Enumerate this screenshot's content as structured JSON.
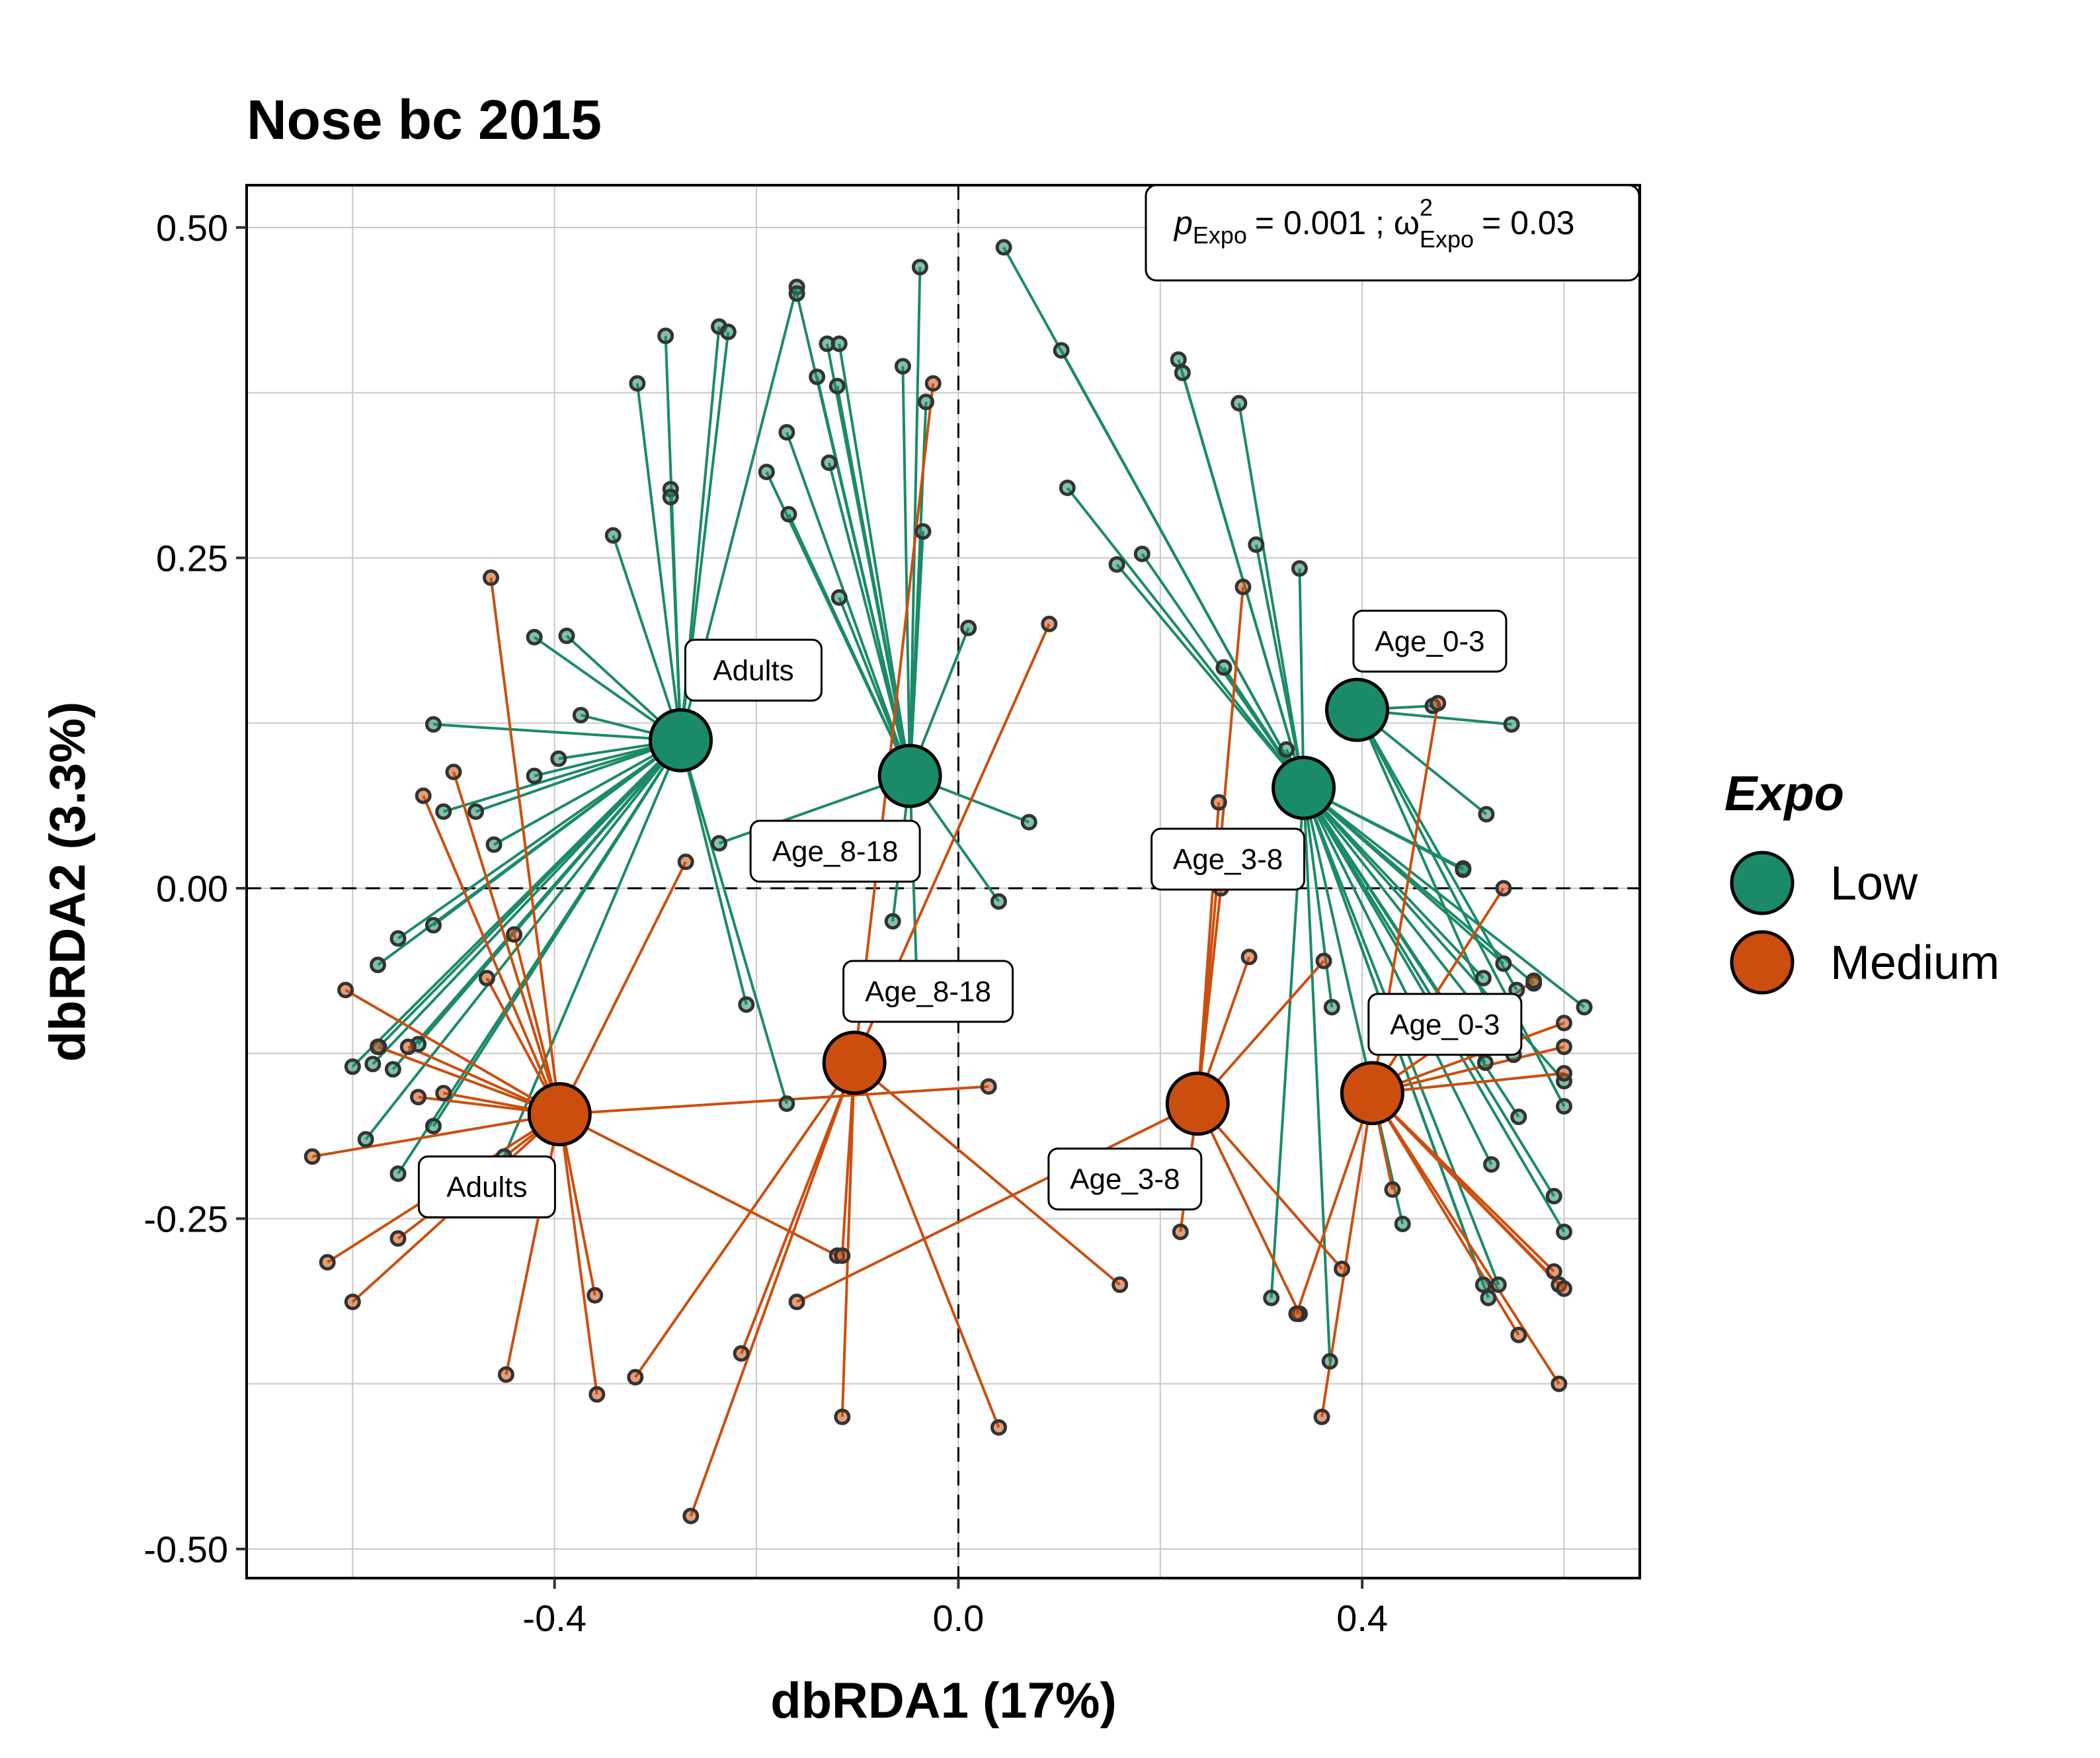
{
  "chart_data": {
    "type": "scatter",
    "title": "Nose bc 2015",
    "xlabel": "dbRDA1 (17%)",
    "ylabel": "dbRDA2 (3.3%)",
    "xlim": [
      -0.705,
      0.675
    ],
    "ylim": [
      -0.522,
      0.532
    ],
    "x_ticks": [
      -0.4,
      0.0,
      0.4
    ],
    "x_tick_labels": [
      "-0.4",
      "0.0",
      "0.4"
    ],
    "y_ticks": [
      0.5,
      0.25,
      0.0,
      -0.25,
      -0.5
    ],
    "y_tick_labels": [
      "0.50",
      "0.25",
      "0.00",
      "-0.25",
      "-0.50"
    ],
    "grid": true,
    "reference_lines": {
      "x": 0,
      "y": 0,
      "style": "dashed"
    },
    "annotation": {
      "p_symbol": "p",
      "subscript": "Expo",
      "p_value": "= 0.001 ;",
      "omega_symbol": "ω",
      "superscript": "2",
      "omega_value": "= 0.03"
    },
    "legend": {
      "title": "Expo",
      "position": "right",
      "entries": [
        {
          "label": "Low",
          "color": "#1b8a68"
        },
        {
          "label": "Medium",
          "color": "#cc4e0e"
        }
      ]
    },
    "colors": {
      "Low": "#1b8a68",
      "Medium": "#cc4e0e"
    },
    "groups": [
      {
        "expo": "Low",
        "label": "Adults",
        "centroid": [
          -0.275,
          0.112
        ],
        "label_pos": [
          -0.203,
          0.165
        ],
        "points": [
          [
            -0.29,
            0.418
          ],
          [
            -0.237,
            0.425
          ],
          [
            -0.228,
            0.421
          ],
          [
            -0.318,
            0.382
          ],
          [
            -0.285,
            0.302
          ],
          [
            -0.285,
            0.296
          ],
          [
            -0.342,
            0.267
          ],
          [
            -0.42,
            0.19
          ],
          [
            -0.388,
            0.191
          ],
          [
            -0.374,
            0.131
          ],
          [
            -0.52,
            0.124
          ],
          [
            -0.396,
            0.098
          ],
          [
            -0.42,
            0.085
          ],
          [
            -0.51,
            0.058
          ],
          [
            -0.478,
            0.058
          ],
          [
            -0.46,
            0.033
          ],
          [
            -0.555,
            -0.038
          ],
          [
            -0.52,
            -0.028
          ],
          [
            -0.575,
            -0.058
          ],
          [
            -0.574,
            -0.12
          ],
          [
            -0.6,
            -0.135
          ],
          [
            -0.58,
            -0.133
          ],
          [
            -0.56,
            -0.137
          ],
          [
            -0.535,
            -0.118
          ],
          [
            -0.587,
            -0.19
          ],
          [
            -0.555,
            -0.216
          ],
          [
            -0.52,
            -0.18
          ],
          [
            -0.45,
            -0.203
          ],
          [
            -0.17,
            -0.163
          ],
          [
            -0.21,
            -0.088
          ],
          [
            -0.16,
            0.455
          ]
        ]
      },
      {
        "expo": "Low",
        "label": "Age_8-18",
        "centroid": [
          -0.048,
          0.085
        ],
        "label_pos": [
          -0.122,
          0.028
        ],
        "points": [
          [
            -0.16,
            0.45
          ],
          [
            -0.13,
            0.412
          ],
          [
            -0.118,
            0.412
          ],
          [
            -0.14,
            0.387
          ],
          [
            -0.12,
            0.38
          ],
          [
            -0.055,
            0.395
          ],
          [
            -0.17,
            0.345
          ],
          [
            -0.128,
            0.322
          ],
          [
            -0.19,
            0.315
          ],
          [
            -0.168,
            0.283
          ],
          [
            -0.038,
            0.47
          ],
          [
            -0.035,
            0.27
          ],
          [
            -0.032,
            0.368
          ],
          [
            -0.118,
            0.22
          ],
          [
            0.01,
            0.197
          ],
          [
            -0.237,
            0.034
          ],
          [
            -0.065,
            -0.025
          ],
          [
            0.04,
            -0.01
          ],
          [
            0.07,
            0.05
          ],
          [
            -0.04,
            -0.095
          ]
        ]
      },
      {
        "expo": "Low",
        "label": "Age_3-8",
        "centroid": [
          0.342,
          0.076
        ],
        "label_pos": [
          0.267,
          0.022
        ],
        "points": [
          [
            0.045,
            0.485
          ],
          [
            0.102,
            0.407
          ],
          [
            0.108,
            0.303
          ],
          [
            0.157,
            0.245
          ],
          [
            0.182,
            0.253
          ],
          [
            0.218,
            0.4
          ],
          [
            0.222,
            0.39
          ],
          [
            0.278,
            0.367
          ],
          [
            0.295,
            0.26
          ],
          [
            0.338,
            0.242
          ],
          [
            0.263,
            0.167
          ],
          [
            0.325,
            0.105
          ],
          [
            0.5,
            0.015
          ],
          [
            0.5,
            0.014
          ],
          [
            0.52,
            -0.068
          ],
          [
            0.55,
            -0.126
          ],
          [
            0.555,
            -0.173
          ],
          [
            0.57,
            -0.072
          ],
          [
            0.6,
            -0.146
          ],
          [
            0.59,
            -0.233
          ],
          [
            0.6,
            -0.26
          ],
          [
            0.52,
            -0.3
          ],
          [
            0.525,
            -0.31
          ],
          [
            0.535,
            -0.3
          ],
          [
            0.44,
            -0.254
          ],
          [
            0.31,
            -0.31
          ],
          [
            0.368,
            -0.358
          ],
          [
            0.37,
            -0.09
          ],
          [
            0.522,
            -0.132
          ],
          [
            0.528,
            -0.209
          ],
          [
            0.62,
            -0.09
          ],
          [
            0.54,
            -0.057
          ]
        ]
      },
      {
        "expo": "Low",
        "label": "Age_0-3",
        "centroid": [
          0.395,
          0.135
        ],
        "label_pos": [
          0.467,
          0.187
        ],
        "points": [
          [
            0.47,
            0.138
          ],
          [
            0.548,
            0.124
          ],
          [
            0.523,
            0.056
          ],
          [
            0.553,
            -0.077
          ],
          [
            0.6,
            -0.165
          ],
          [
            0.527,
            -0.093
          ]
        ]
      },
      {
        "expo": "Medium",
        "label": "Adults",
        "centroid": [
          -0.395,
          -0.171
        ],
        "label_pos": [
          -0.467,
          -0.226
        ],
        "points": [
          [
            -0.463,
            0.235
          ],
          [
            -0.53,
            0.07
          ],
          [
            -0.5,
            0.088
          ],
          [
            -0.44,
            -0.035
          ],
          [
            -0.467,
            -0.068
          ],
          [
            -0.607,
            -0.077
          ],
          [
            -0.575,
            -0.12
          ],
          [
            -0.545,
            -0.12
          ],
          [
            -0.535,
            -0.158
          ],
          [
            -0.51,
            -0.155
          ],
          [
            -0.64,
            -0.203
          ],
          [
            -0.625,
            -0.283
          ],
          [
            -0.6,
            -0.313
          ],
          [
            -0.555,
            -0.265
          ],
          [
            -0.448,
            -0.368
          ],
          [
            -0.36,
            -0.308
          ],
          [
            -0.358,
            -0.383
          ],
          [
            -0.27,
            0.02
          ],
          [
            -0.12,
            -0.278
          ],
          [
            0.03,
            -0.15
          ]
        ]
      },
      {
        "expo": "Medium",
        "label": "Age_8-18",
        "centroid": [
          -0.103,
          -0.132
        ],
        "label_pos": [
          -0.03,
          -0.078
        ],
        "points": [
          [
            -0.025,
            0.382
          ],
          [
            0.09,
            0.2
          ],
          [
            -0.32,
            -0.37
          ],
          [
            -0.215,
            -0.352
          ],
          [
            -0.115,
            -0.4
          ],
          [
            -0.115,
            -0.278
          ],
          [
            0.04,
            -0.408
          ],
          [
            0.16,
            -0.3
          ],
          [
            -0.265,
            -0.475
          ]
        ]
      },
      {
        "expo": "Medium",
        "label": "Age_3-8",
        "centroid": [
          0.237,
          -0.163
        ],
        "label_pos": [
          0.165,
          -0.22
        ],
        "points": [
          [
            0.282,
            0.228
          ],
          [
            0.258,
            0.065
          ],
          [
            0.26,
            0.0
          ],
          [
            0.288,
            -0.052
          ],
          [
            0.22,
            -0.26
          ],
          [
            0.338,
            -0.322
          ],
          [
            -0.16,
            -0.313
          ],
          [
            0.362,
            -0.055
          ],
          [
            0.38,
            -0.288
          ]
        ]
      },
      {
        "expo": "Medium",
        "label": "Age_0-3",
        "centroid": [
          0.41,
          -0.155
        ],
        "label_pos": [
          0.482,
          -0.103
        ],
        "points": [
          [
            0.475,
            0.14
          ],
          [
            0.54,
            0.0
          ],
          [
            0.57,
            -0.07
          ],
          [
            0.6,
            -0.12
          ],
          [
            0.6,
            -0.102
          ],
          [
            0.6,
            -0.14
          ],
          [
            0.43,
            -0.228
          ],
          [
            0.555,
            -0.338
          ],
          [
            0.59,
            -0.29
          ],
          [
            0.595,
            -0.3
          ],
          [
            0.6,
            -0.303
          ],
          [
            0.595,
            -0.375
          ],
          [
            0.36,
            -0.4
          ],
          [
            0.335,
            -0.322
          ]
        ]
      }
    ]
  }
}
